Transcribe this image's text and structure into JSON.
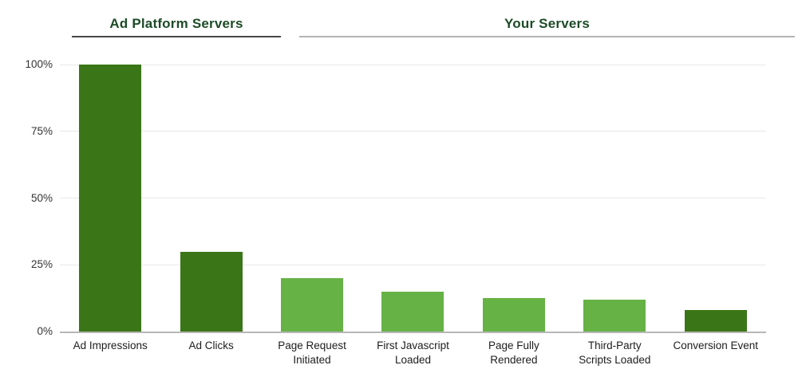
{
  "header": {
    "groups": [
      {
        "label": "Ad Platform Servers",
        "underline_color": "#474747"
      },
      {
        "label": "Your Servers",
        "underline_color": "#b3b3b3"
      }
    ]
  },
  "chart_data": {
    "type": "bar",
    "categories": [
      "Ad Impressions",
      "Ad Clicks",
      "Page Request\nInitiated",
      "First Javascript\nLoaded",
      "Page Fully\nRendered",
      "Third-Party\nScripts Loaded",
      "Conversion Event"
    ],
    "values": [
      100,
      30,
      20,
      15,
      12.5,
      12,
      8
    ],
    "bar_colors": [
      "#3a7617",
      "#3a7617",
      "#66b245",
      "#66b245",
      "#66b245",
      "#66b245",
      "#3a7617"
    ],
    "group_spans": [
      {
        "group": "Ad Platform Servers",
        "categories": [
          "Ad Impressions",
          "Ad Clicks"
        ]
      },
      {
        "group": "Your Servers",
        "categories": [
          "Page Request Initiated",
          "First Javascript Loaded",
          "Page Fully Rendered",
          "Third-Party Scripts Loaded",
          "Conversion Event"
        ]
      }
    ],
    "title": "",
    "xlabel": "",
    "ylabel": "",
    "ylim": [
      0,
      100
    ],
    "ytick_labels": [
      "100%",
      "75%",
      "50%",
      "25%",
      "0%"
    ],
    "ytick_values": [
      100,
      75,
      50,
      25,
      0
    ],
    "grid": true,
    "legend": "none"
  },
  "colors": {
    "dark_green_bar": "#3a7617",
    "light_green_bar": "#66b245",
    "title_text": "#1d4b27",
    "gridline": "#e8e8e8",
    "axis_line": "#b7b7b7",
    "ytick_text": "#333333",
    "xtick_text": "#1d1d1d",
    "background": "#ffffff"
  }
}
